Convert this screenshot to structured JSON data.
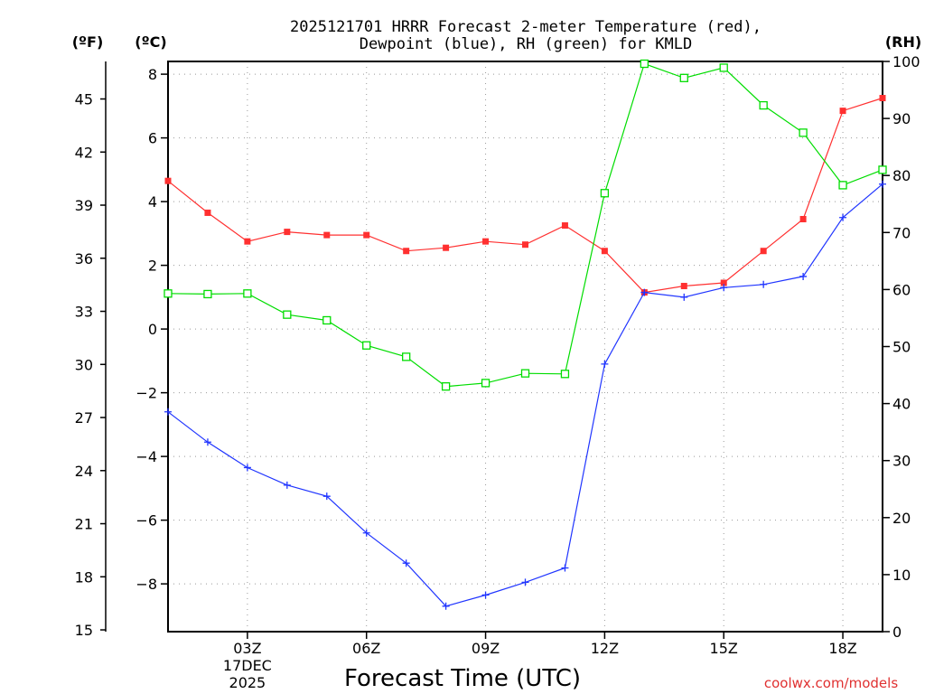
{
  "chart_data": {
    "type": "line",
    "title_line1": "2025121701 HRRR Forecast 2-meter Temperature (red),",
    "title_line2": "Dewpoint (blue), RH (green) for KMLD",
    "left_outer_unit": "(ºF)",
    "left_inner_unit": "(ºC)",
    "right_unit": "(RH)",
    "xlabel": "Forecast Time (UTC)",
    "credit": "coolwx.com/models",
    "x_hours": [
      0,
      1,
      2,
      3,
      4,
      5,
      6,
      7,
      8,
      9,
      10,
      11,
      12,
      13,
      14,
      15,
      16,
      17,
      18
    ],
    "x_range": [
      0,
      18
    ],
    "x_ticks": [
      {
        "hour": 2,
        "label": "03Z",
        "date1": "17DEC",
        "date2": "2025"
      },
      {
        "hour": 5,
        "label": "06Z"
      },
      {
        "hour": 8,
        "label": "09Z"
      },
      {
        "hour": 11,
        "label": "12Z"
      },
      {
        "hour": 14,
        "label": "15Z"
      },
      {
        "hour": 17,
        "label": "18Z"
      }
    ],
    "y_celsius_range": [
      -9.5,
      8.4
    ],
    "y_celsius_ticks": [
      {
        "v": 8,
        "label": "8"
      },
      {
        "v": 6,
        "label": "6"
      },
      {
        "v": 4,
        "label": "4"
      },
      {
        "v": 2,
        "label": "2"
      },
      {
        "v": 0,
        "label": "0"
      },
      {
        "v": -2,
        "label": "−2"
      },
      {
        "v": -4,
        "label": "−4"
      },
      {
        "v": -6,
        "label": "−6"
      },
      {
        "v": -8,
        "label": "−8"
      }
    ],
    "y_fahrenheit_ticks": [
      15,
      18,
      21,
      24,
      27,
      30,
      33,
      36,
      39,
      42,
      45
    ],
    "y_rh_range": [
      0,
      100
    ],
    "y_rh_ticks": [
      0,
      10,
      20,
      30,
      40,
      50,
      60,
      70,
      80,
      90,
      100
    ],
    "series": [
      {
        "name": "Temperature",
        "unit": "C",
        "color": "#ff3030",
        "marker": "filled-square",
        "values": [
          4.65,
          3.65,
          2.75,
          3.05,
          2.95,
          2.95,
          2.45,
          2.55,
          2.75,
          2.65,
          3.25,
          2.45,
          1.15,
          1.35,
          1.45,
          2.45,
          3.45,
          6.85,
          7.25
        ]
      },
      {
        "name": "Dewpoint",
        "unit": "C",
        "color": "#2035ff",
        "marker": "plus",
        "values": [
          -2.6,
          -3.55,
          -4.35,
          -4.9,
          -5.25,
          -6.4,
          -7.35,
          -8.7,
          -8.35,
          -7.95,
          -7.5,
          -1.1,
          1.15,
          1.0,
          1.3,
          1.4,
          1.65,
          3.5,
          4.55
        ]
      },
      {
        "name": "RH",
        "unit": "%",
        "color": "#00dd00",
        "marker": "open-square",
        "values": [
          59.3,
          59.2,
          59.3,
          55.6,
          54.6,
          50.2,
          48.2,
          43.0,
          43.6,
          45.3,
          45.2,
          76.9,
          99.6,
          97.1,
          98.9,
          92.3,
          87.5,
          78.3,
          81.0
        ]
      }
    ]
  }
}
